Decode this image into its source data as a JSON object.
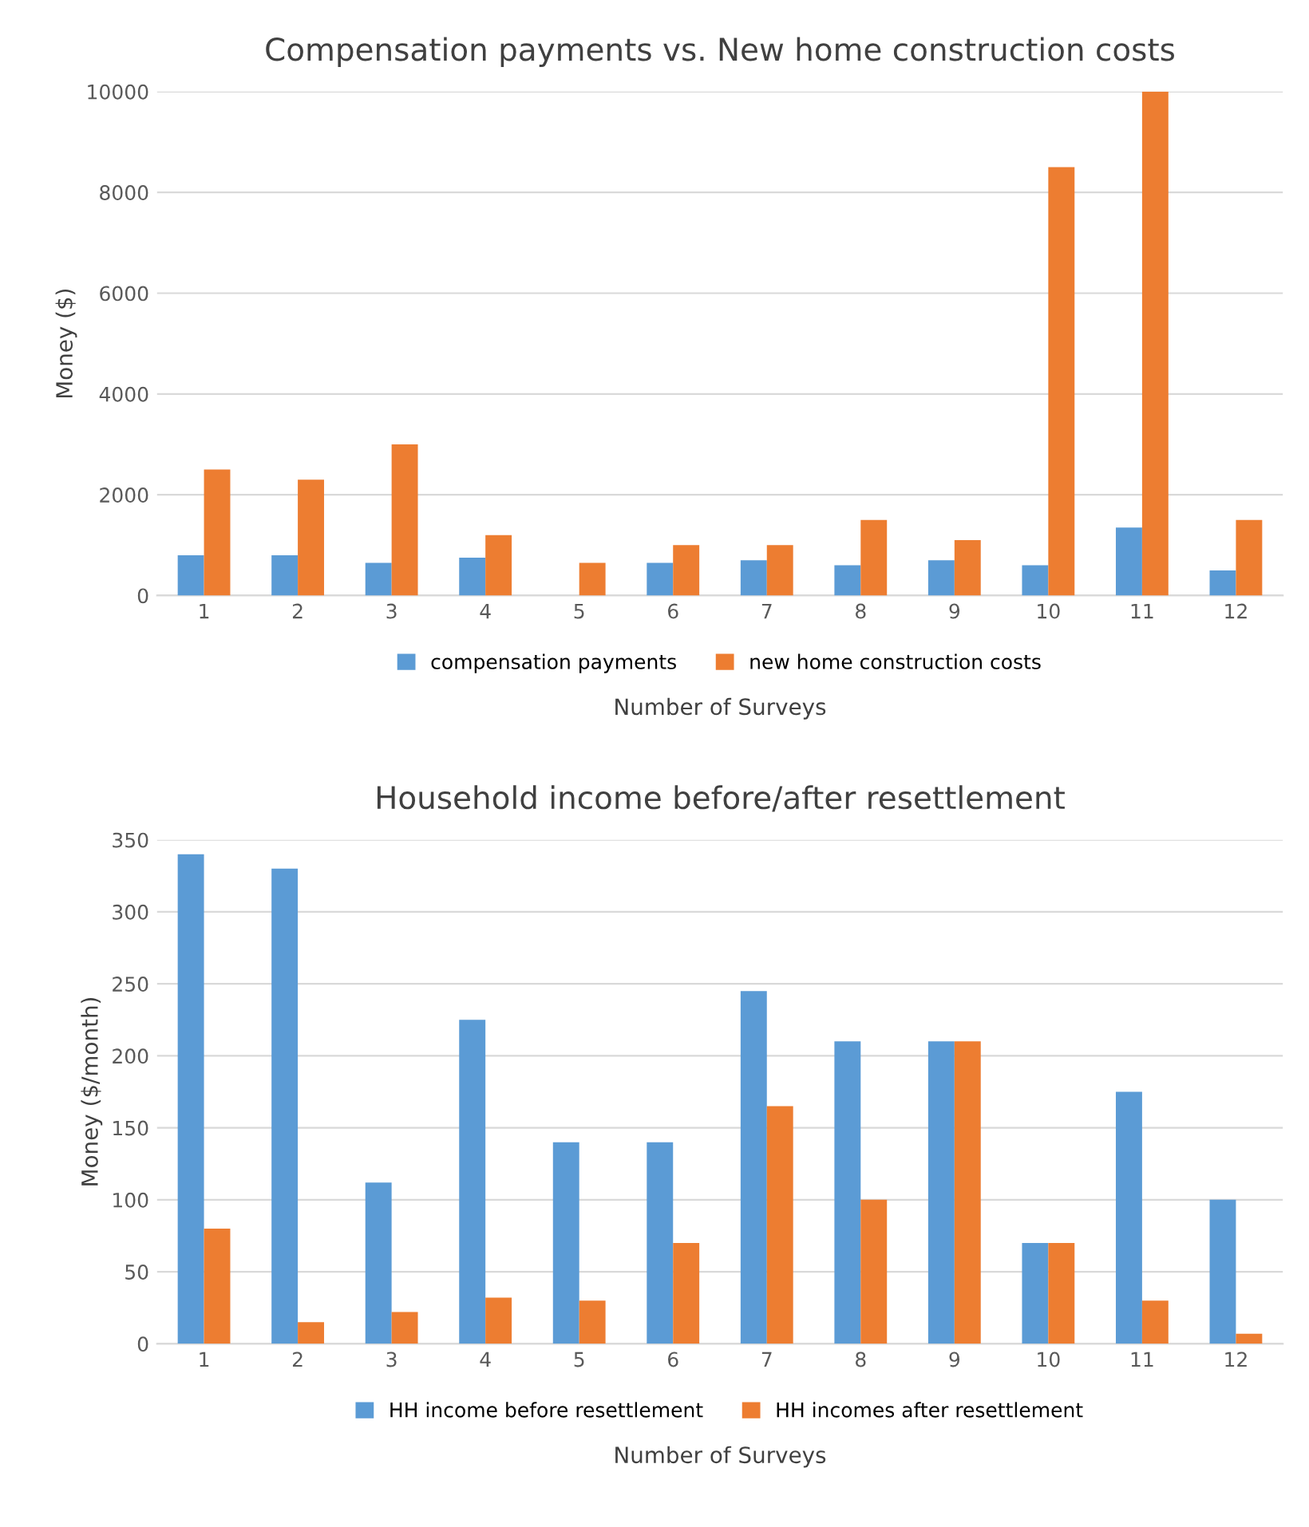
{
  "chart_data": [
    {
      "type": "bar",
      "title": "Compensation payments vs. New home construction costs",
      "xlabel": "Number of Surveys",
      "ylabel": "Money ($)",
      "categories": [
        "1",
        "2",
        "3",
        "4",
        "5",
        "6",
        "7",
        "8",
        "9",
        "10",
        "11",
        "12"
      ],
      "series": [
        {
          "name": "compensation payments",
          "color": "#5b9bd5",
          "values": [
            800,
            800,
            650,
            750,
            null,
            650,
            700,
            600,
            700,
            600,
            1350,
            500
          ]
        },
        {
          "name": "new home construction costs",
          "color": "#ed7d31",
          "values": [
            2500,
            2300,
            3000,
            1200,
            650,
            1000,
            1000,
            1500,
            1100,
            8500,
            10000,
            1500
          ]
        }
      ],
      "ylim": [
        0,
        10000
      ],
      "yticks": [
        0,
        2000,
        4000,
        6000,
        8000,
        10000
      ],
      "grid": "y",
      "legend": "bottom"
    },
    {
      "type": "bar",
      "title": "Household income before/after resettlement",
      "xlabel": "Number of Surveys",
      "ylabel": "Money ($/month)",
      "categories": [
        "1",
        "2",
        "3",
        "4",
        "5",
        "6",
        "7",
        "8",
        "9",
        "10",
        "11",
        "12"
      ],
      "series": [
        {
          "name": "HH income before resettlement",
          "color": "#5b9bd5",
          "values": [
            340,
            330,
            112,
            225,
            140,
            140,
            245,
            210,
            210,
            70,
            175,
            100
          ]
        },
        {
          "name": "HH incomes after resettlement",
          "color": "#ed7d31",
          "values": [
            80,
            15,
            22,
            32,
            30,
            70,
            165,
            100,
            210,
            70,
            30,
            7
          ]
        }
      ],
      "ylim": [
        0,
        350
      ],
      "yticks": [
        0,
        50,
        100,
        150,
        200,
        250,
        300,
        350
      ],
      "grid": "y",
      "legend": "bottom"
    }
  ]
}
